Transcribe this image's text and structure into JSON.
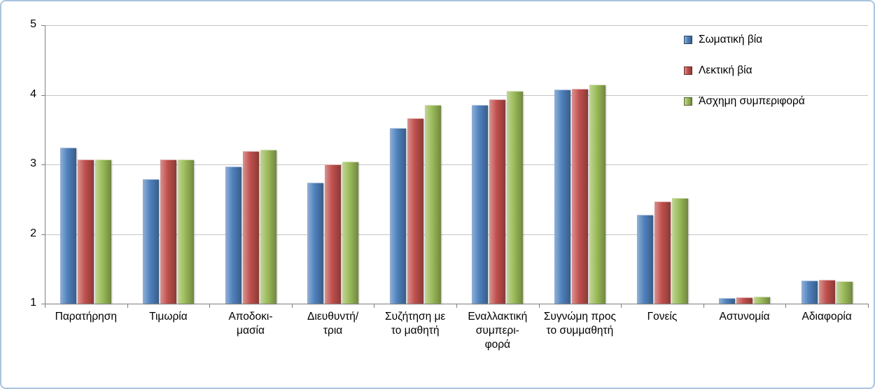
{
  "chart_data": {
    "type": "bar",
    "title": "",
    "xlabel": "",
    "ylabel": "",
    "ylim": [
      1,
      5
    ],
    "yticks": [
      1,
      2,
      3,
      4,
      5
    ],
    "grid": true,
    "legend_position": "top-right",
    "categories": [
      "Παρατήρηση",
      "Τιμωρία",
      "Αποδοκι-\nμασία",
      "Διευθυντή/\nτρια",
      "Συζήτηση με\nτο μαθητή",
      "Εναλλακτική\nσυμπερι-\nφορά",
      "Συγνώμη προς\nτο συμμαθητή",
      "Γονείς",
      "Αστυνομία",
      "Αδιαφορία"
    ],
    "series": [
      {
        "name": "Σωματική βία",
        "values": [
          3.24,
          2.79,
          2.97,
          2.74,
          3.52,
          3.85,
          4.08,
          2.28,
          1.08,
          1.33
        ]
      },
      {
        "name": "Λεκτική βία",
        "values": [
          3.07,
          3.07,
          3.19,
          3.0,
          3.66,
          3.93,
          4.09,
          2.47,
          1.09,
          1.34
        ]
      },
      {
        "name": "Άσχημη συμπεριφορά",
        "values": [
          3.07,
          3.07,
          3.21,
          3.04,
          3.85,
          4.06,
          4.15,
          2.52,
          1.1,
          1.32
        ]
      }
    ],
    "colors": [
      "#4F81BD",
      "#C0504D",
      "#9BBB59"
    ],
    "gridline_color": "#C6C6C6",
    "axis_color": "#7F7F7F",
    "frame_border_color": "#A9C4E0",
    "background_color": "#FFFFFF"
  }
}
